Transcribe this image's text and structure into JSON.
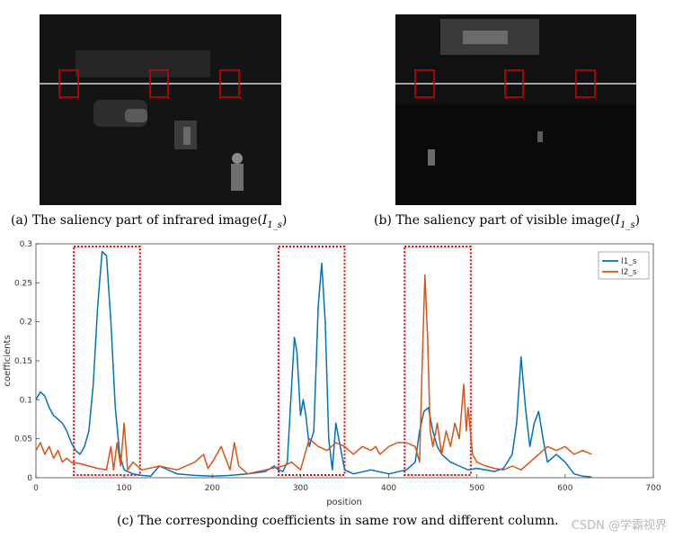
{
  "panels": {
    "a": {
      "caption_text": "(a) The saliency part of infrared image(",
      "var": "I",
      "sub": "1_s",
      "close": ")"
    },
    "b": {
      "caption_text": "(b) The saliency part of visible image(",
      "var": "I",
      "sub": "1_s",
      "close": ")"
    }
  },
  "figure_caption": "(c) The corresponding coefficients in same row and different column.",
  "watermark": "CSDN @学霸视界",
  "chart_data": {
    "type": "line",
    "xlabel": "position",
    "ylabel": "coefficients",
    "xlim": [
      0,
      700
    ],
    "ylim": [
      0,
      0.3
    ],
    "xticks": [
      0,
      100,
      200,
      300,
      400,
      500,
      600,
      700
    ],
    "yticks": [
      0,
      0.05,
      0.1,
      0.15,
      0.2,
      0.25,
      0.3
    ],
    "ytick_labels": [
      "0",
      "0.05",
      "0.1",
      "0.15",
      "0.2",
      "0.25",
      "0.3"
    ],
    "legend_position": "top-right",
    "highlight_regions": [
      [
        43,
        118
      ],
      [
        275,
        350
      ],
      [
        418,
        493
      ]
    ],
    "series": [
      {
        "name": "I1_s",
        "color": "#0072BD",
        "x": [
          0,
          5,
          10,
          15,
          20,
          25,
          30,
          35,
          40,
          45,
          50,
          55,
          60,
          65,
          70,
          75,
          80,
          85,
          90,
          95,
          100,
          110,
          120,
          130,
          140,
          160,
          180,
          200,
          220,
          240,
          260,
          270,
          275,
          280,
          285,
          290,
          293,
          296,
          300,
          303,
          306,
          310,
          315,
          320,
          324,
          328,
          332,
          336,
          340,
          345,
          350,
          360,
          380,
          400,
          420,
          430,
          435,
          440,
          445,
          450,
          455,
          460,
          470,
          480,
          490,
          500,
          510,
          520,
          530,
          540,
          545,
          550,
          555,
          560,
          565,
          570,
          575,
          580,
          590,
          600,
          610,
          620,
          630
        ],
        "values": [
          0.1,
          0.11,
          0.105,
          0.09,
          0.08,
          0.075,
          0.07,
          0.06,
          0.045,
          0.035,
          0.03,
          0.04,
          0.06,
          0.12,
          0.22,
          0.29,
          0.285,
          0.2,
          0.09,
          0.03,
          0.01,
          0.005,
          0.003,
          0.002,
          0.015,
          0.005,
          0.003,
          0.002,
          0.003,
          0.005,
          0.008,
          0.015,
          0.01,
          0.008,
          0.02,
          0.12,
          0.18,
          0.16,
          0.08,
          0.1,
          0.08,
          0.04,
          0.06,
          0.22,
          0.275,
          0.2,
          0.05,
          0.01,
          0.07,
          0.04,
          0.01,
          0.005,
          0.01,
          0.005,
          0.01,
          0.02,
          0.06,
          0.085,
          0.09,
          0.06,
          0.04,
          0.03,
          0.02,
          0.015,
          0.01,
          0.012,
          0.01,
          0.008,
          0.012,
          0.03,
          0.07,
          0.155,
          0.09,
          0.04,
          0.07,
          0.085,
          0.05,
          0.02,
          0.03,
          0.02,
          0.005,
          0.002,
          0.001
        ]
      },
      {
        "name": "I2_s",
        "color": "#D95319",
        "x": [
          0,
          5,
          10,
          15,
          20,
          25,
          30,
          35,
          40,
          50,
          60,
          70,
          80,
          85,
          88,
          92,
          96,
          100,
          104,
          110,
          120,
          140,
          160,
          180,
          190,
          195,
          200,
          210,
          220,
          225,
          230,
          240,
          260,
          280,
          290,
          300,
          310,
          320,
          330,
          340,
          350,
          360,
          370,
          380,
          385,
          390,
          400,
          410,
          420,
          430,
          435,
          438,
          441,
          444,
          447,
          450,
          455,
          460,
          465,
          470,
          475,
          480,
          485,
          488,
          490,
          495,
          500,
          510,
          520,
          530,
          540,
          550,
          560,
          570,
          580,
          590,
          600,
          610,
          620,
          630
        ],
        "values": [
          0.035,
          0.045,
          0.03,
          0.04,
          0.025,
          0.035,
          0.02,
          0.025,
          0.02,
          0.018,
          0.015,
          0.012,
          0.01,
          0.04,
          0.01,
          0.045,
          0.015,
          0.07,
          0.01,
          0.02,
          0.01,
          0.015,
          0.01,
          0.02,
          0.03,
          0.012,
          0.02,
          0.04,
          0.01,
          0.045,
          0.015,
          0.005,
          0.01,
          0.015,
          0.02,
          0.01,
          0.05,
          0.04,
          0.035,
          0.045,
          0.04,
          0.03,
          0.04,
          0.035,
          0.04,
          0.03,
          0.04,
          0.045,
          0.045,
          0.04,
          0.02,
          0.15,
          0.26,
          0.18,
          0.06,
          0.04,
          0.07,
          0.03,
          0.06,
          0.04,
          0.07,
          0.05,
          0.12,
          0.06,
          0.09,
          0.03,
          0.02,
          0.015,
          0.012,
          0.01,
          0.015,
          0.01,
          0.02,
          0.03,
          0.04,
          0.035,
          0.04,
          0.03,
          0.035,
          0.03
        ]
      }
    ]
  }
}
